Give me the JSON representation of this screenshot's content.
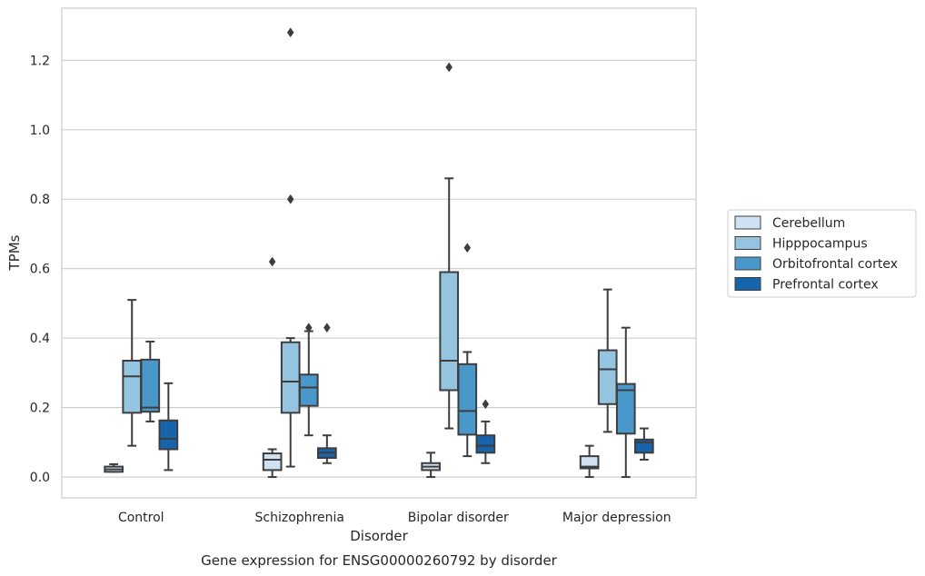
{
  "chart_data": {
    "type": "box",
    "title": "",
    "caption": "Gene expression for ENSG00000260792 by disorder",
    "xlabel": "Disorder",
    "ylabel": "TPMs",
    "ylim": [
      -0.06,
      1.35
    ],
    "yticks": [
      0.0,
      0.2,
      0.4,
      0.6,
      0.8,
      1.0,
      1.2
    ],
    "ytick_labels": [
      "0.0",
      "0.2",
      "0.4",
      "0.6",
      "0.8",
      "1.0",
      "1.2"
    ],
    "grid": "horizontal",
    "legend_position": "right",
    "categories": [
      "Control",
      "Schizophrenia",
      "Bipolar disorder",
      "Major depression"
    ],
    "series": [
      {
        "name": "Cerebellum",
        "color": "#d0e1f2",
        "boxes": [
          {
            "whislo": 0.015,
            "q1": 0.015,
            "med": 0.022,
            "q3": 0.03,
            "whishi": 0.037,
            "fliers": []
          },
          {
            "whislo": 0.0,
            "q1": 0.02,
            "med": 0.05,
            "q3": 0.068,
            "whishi": 0.08,
            "fliers": [
              0.62
            ]
          },
          {
            "whislo": 0.0,
            "q1": 0.02,
            "med": 0.03,
            "q3": 0.04,
            "whishi": 0.07,
            "fliers": []
          },
          {
            "whislo": 0.0,
            "q1": 0.025,
            "med": 0.03,
            "q3": 0.06,
            "whishi": 0.09,
            "fliers": []
          }
        ]
      },
      {
        "name": "Hipppocampus",
        "color": "#94c4df",
        "boxes": [
          {
            "whislo": 0.09,
            "q1": 0.185,
            "med": 0.29,
            "q3": 0.335,
            "whishi": 0.51,
            "fliers": []
          },
          {
            "whislo": 0.03,
            "q1": 0.185,
            "med": 0.275,
            "q3": 0.388,
            "whishi": 0.4,
            "fliers": [
              0.8,
              1.28
            ]
          },
          {
            "whislo": 0.14,
            "q1": 0.25,
            "med": 0.335,
            "q3": 0.59,
            "whishi": 0.86,
            "fliers": [
              1.18
            ]
          },
          {
            "whislo": 0.13,
            "q1": 0.21,
            "med": 0.31,
            "q3": 0.365,
            "whishi": 0.54,
            "fliers": []
          }
        ]
      },
      {
        "name": "Orbitofrontal cortex",
        "color": "#4a98c9",
        "boxes": [
          {
            "whislo": 0.16,
            "q1": 0.188,
            "med": 0.2,
            "q3": 0.338,
            "whishi": 0.39,
            "fliers": []
          },
          {
            "whislo": 0.12,
            "q1": 0.205,
            "med": 0.258,
            "q3": 0.295,
            "whishi": 0.42,
            "fliers": [
              0.43
            ]
          },
          {
            "whislo": 0.06,
            "q1": 0.122,
            "med": 0.19,
            "q3": 0.325,
            "whishi": 0.36,
            "fliers": [
              0.66
            ]
          },
          {
            "whislo": 0.0,
            "q1": 0.125,
            "med": 0.25,
            "q3": 0.268,
            "whishi": 0.43,
            "fliers": []
          }
        ]
      },
      {
        "name": "Prefrontal cortex",
        "color": "#1764ab",
        "boxes": [
          {
            "whislo": 0.02,
            "q1": 0.08,
            "med": 0.11,
            "q3": 0.163,
            "whishi": 0.27,
            "fliers": []
          },
          {
            "whislo": 0.04,
            "q1": 0.055,
            "med": 0.07,
            "q3": 0.083,
            "whishi": 0.12,
            "fliers": [
              0.43
            ]
          },
          {
            "whislo": 0.04,
            "q1": 0.07,
            "med": 0.09,
            "q3": 0.12,
            "whishi": 0.16,
            "fliers": [
              0.21
            ]
          },
          {
            "whislo": 0.05,
            "q1": 0.07,
            "med": 0.1,
            "q3": 0.108,
            "whishi": 0.14,
            "fliers": []
          }
        ]
      }
    ]
  }
}
